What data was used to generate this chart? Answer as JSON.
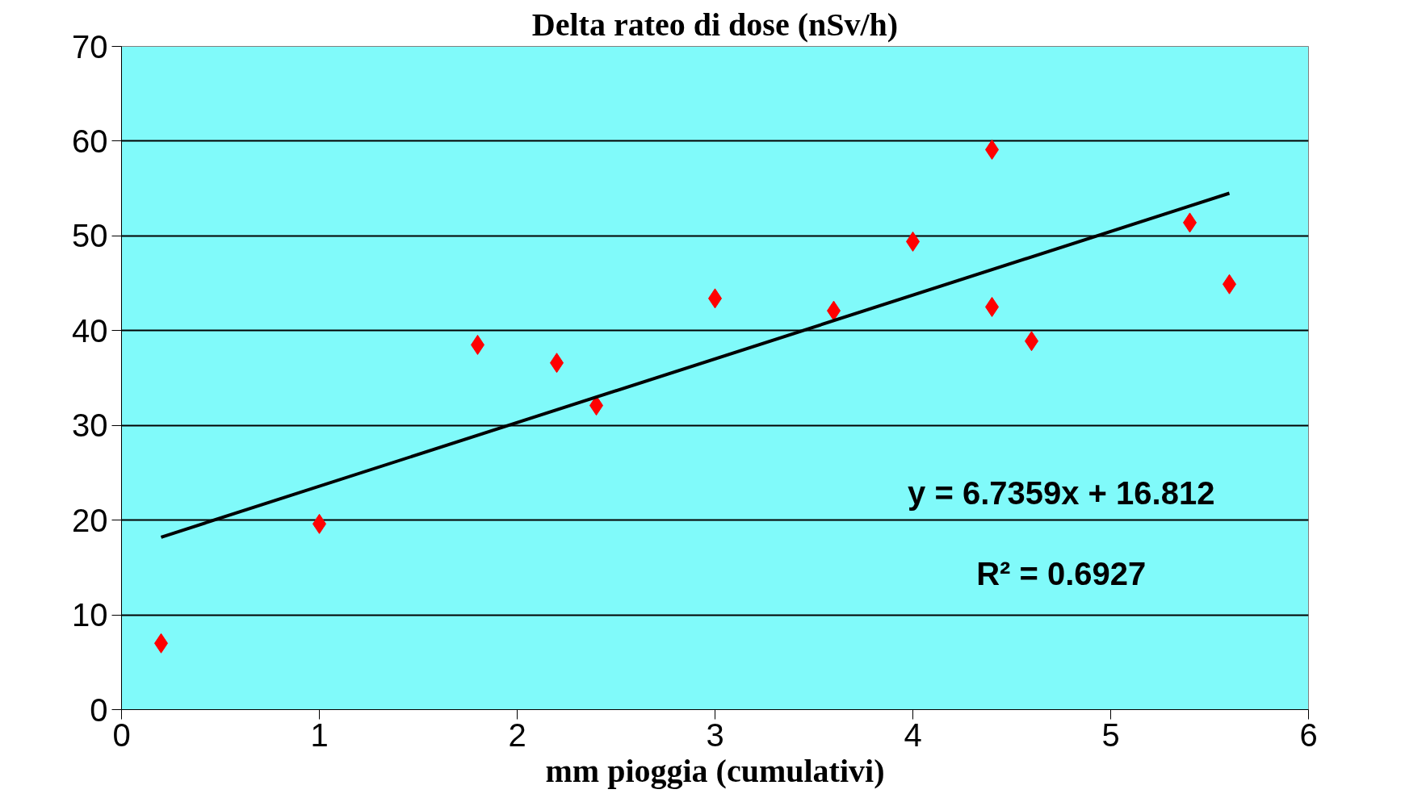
{
  "chart_data": {
    "type": "scatter",
    "title": "Delta rateo di dose (nSv/h)",
    "xlabel": "mm pioggia (cumulativi)",
    "x": [
      0.2,
      1.0,
      1.8,
      2.2,
      2.4,
      3.0,
      3.6,
      4.0,
      4.4,
      4.4,
      4.6,
      5.4,
      5.6
    ],
    "series": [
      {
        "color": "#ff0000",
        "marker": "diamond",
        "values": [
          7.0,
          19.6,
          38.5,
          36.6,
          32.1,
          43.4,
          42.1,
          49.4,
          59.1,
          42.5,
          38.9,
          51.4,
          44.9
        ]
      },
      {
        "type": "line",
        "color": "#000000",
        "x": [
          0.2,
          5.6
        ],
        "values": [
          18.2,
          54.5
        ]
      }
    ],
    "annotations": [
      "y = 6.7359x + 16.812",
      "R² = 0.6927"
    ],
    "xlim": [
      0,
      6
    ],
    "xticks": [
      0,
      1,
      2,
      3,
      4,
      5,
      6
    ],
    "ylim": [
      0,
      70
    ],
    "yticks": [
      0,
      10,
      20,
      30,
      40,
      50,
      60,
      70
    ],
    "grid": "y"
  }
}
